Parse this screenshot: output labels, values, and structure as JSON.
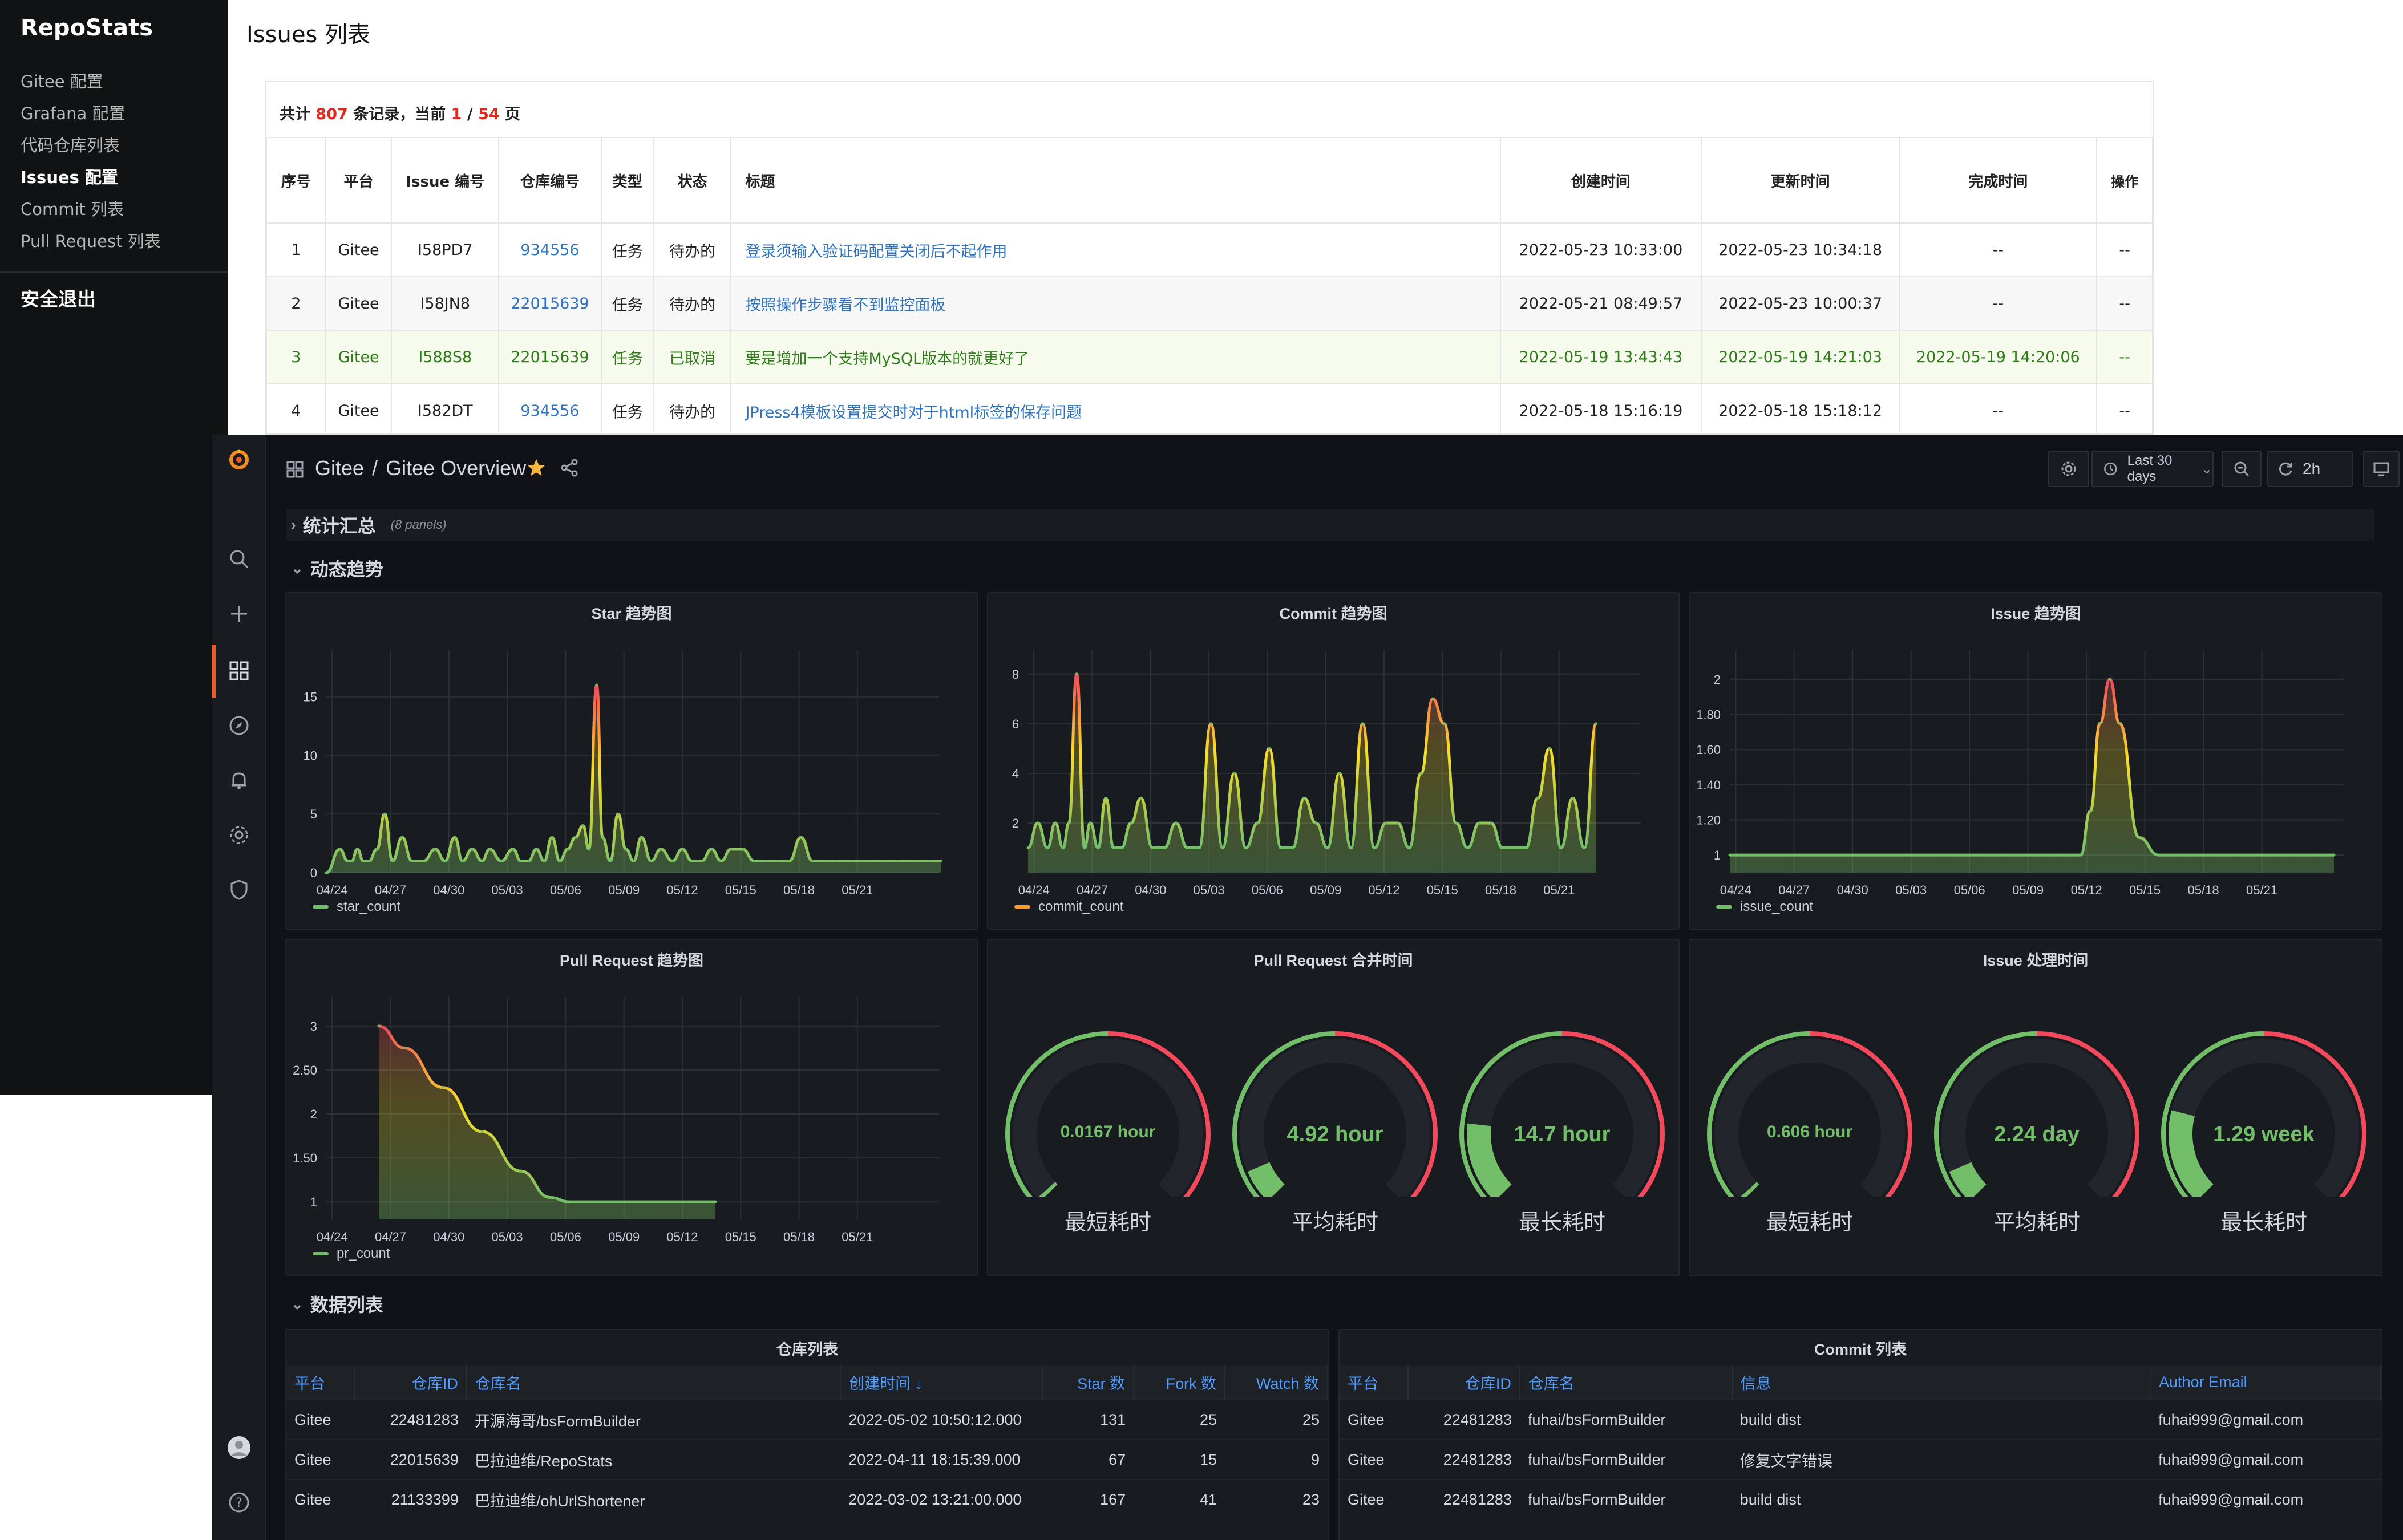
{
  "repostats": {
    "brand": "RepoStats",
    "nav": [
      "Gitee 配置",
      "Grafana 配置",
      "代码仓库列表",
      "Issues 配置",
      "Commit 列表",
      "Pull Request 列表"
    ],
    "active_index": 3,
    "logout": "安全退出",
    "page_title": "Issues 列表",
    "summary": {
      "prefix": "共计 ",
      "total": "807",
      "mid": " 条记录，当前 ",
      "page": "1",
      "sep": " / ",
      "pages": "54",
      "suffix": " 页"
    },
    "columns": [
      "序号",
      "平台",
      "Issue 编号",
      "仓库编号",
      "类型",
      "状态",
      "标题",
      "创建时间",
      "更新时间",
      "完成时间",
      "操作"
    ],
    "rows": [
      {
        "no": "1",
        "platform": "Gitee",
        "issue": "I58PD7",
        "repo": "934556",
        "type": "任务",
        "status": "待办的",
        "title": "登录须输入验证码配置关闭后不起作用",
        "created": "2022-05-23 10:33:00",
        "updated": "2022-05-23 10:34:18",
        "finished": "--",
        "ops": "--"
      },
      {
        "no": "2",
        "platform": "Gitee",
        "issue": "I58JN8",
        "repo": "22015639",
        "type": "任务",
        "status": "待办的",
        "title": "按照操作步骤看不到监控面板",
        "created": "2022-05-21 08:49:57",
        "updated": "2022-05-23 10:00:37",
        "finished": "--",
        "ops": "--"
      },
      {
        "no": "3",
        "platform": "Gitee",
        "issue": "I588S8",
        "repo": "22015639",
        "type": "任务",
        "status": "已取消",
        "title": "要是增加一个支持MySQL版本的就更好了",
        "created": "2022-05-19 13:43:43",
        "updated": "2022-05-19 14:21:03",
        "finished": "2022-05-19 14:20:06",
        "ops": "--"
      },
      {
        "no": "4",
        "platform": "Gitee",
        "issue": "I582DT",
        "repo": "934556",
        "type": "任务",
        "status": "待办的",
        "title": "JPress4模板设置提交时对于html标签的保存问题",
        "created": "2022-05-18 15:16:19",
        "updated": "2022-05-18 15:18:12",
        "finished": "--",
        "ops": "--"
      }
    ]
  },
  "grafana": {
    "breadcrumb": {
      "folder": "Gitee",
      "sep": "/",
      "dashboard": "Gitee Overview"
    },
    "time_range": "Last 30 days",
    "refresh_interval": "2h",
    "rows": {
      "summary": {
        "title": "统计汇总",
        "note": "(8 panels)"
      },
      "trends": {
        "title": "动态趋势"
      },
      "tables": {
        "title": "数据列表"
      }
    },
    "colors": {
      "green": "#73bf69",
      "yellow": "#fade2a",
      "red": "#f2495c",
      "orange": "#ff9830",
      "accent": "#f05a28"
    },
    "gauges": [
      {
        "panel": "Pull Request 合并时间",
        "items": [
          {
            "value": "0.0167 hour",
            "caption": "最短耗时",
            "fraction": 0.01
          },
          {
            "value": "4.92 hour",
            "caption": "平均耗时",
            "fraction": 0.08
          },
          {
            "value": "14.7 hour",
            "caption": "最长耗时",
            "fraction": 0.19
          }
        ]
      },
      {
        "panel": "Issue 处理时间",
        "items": [
          {
            "value": "0.606 hour",
            "caption": "最短耗时",
            "fraction": 0.01
          },
          {
            "value": "2.24 day",
            "caption": "平均耗时",
            "fraction": 0.08
          },
          {
            "value": "1.29 week",
            "caption": "最长耗时",
            "fraction": 0.22
          }
        ]
      }
    ],
    "repo_table": {
      "title": "仓库列表",
      "columns": [
        "平台",
        "仓库ID",
        "仓库名",
        "创建时间 ↓",
        "Star 数",
        "Fork 数",
        "Watch 数"
      ],
      "rows": [
        [
          "Gitee",
          "22481283",
          "开源海哥/bsFormBuilder",
          "2022-05-02 10:50:12.000",
          "131",
          "25",
          "25"
        ],
        [
          "Gitee",
          "22015639",
          "巴拉迪维/RepoStats",
          "2022-04-11 18:15:39.000",
          "67",
          "15",
          "9"
        ],
        [
          "Gitee",
          "21133399",
          "巴拉迪维/ohUrlShortener",
          "2022-03-02 13:21:00.000",
          "167",
          "41",
          "23"
        ]
      ]
    },
    "commit_table": {
      "title": "Commit 列表",
      "columns": [
        "平台",
        "仓库ID",
        "仓库名",
        "信息",
        "Author Email"
      ],
      "rows": [
        [
          "Gitee",
          "22481283",
          "fuhai/bsFormBuilder",
          "build dist",
          "fuhai999@gmail.com"
        ],
        [
          "Gitee",
          "22481283",
          "fuhai/bsFormBuilder",
          "修复文字错误",
          "fuhai999@gmail.com"
        ],
        [
          "Gitee",
          "22481283",
          "fuhai/bsFormBuilder",
          "build dist",
          "fuhai999@gmail.com"
        ]
      ]
    }
  },
  "chart_data": [
    {
      "type": "line",
      "title": "Star 趋势图",
      "x_ticks": [
        "04/24",
        "04/27",
        "04/30",
        "05/03",
        "05/06",
        "05/09",
        "05/12",
        "05/15",
        "05/18",
        "05/21"
      ],
      "y_ticks": [
        "0",
        "5",
        "10",
        "15"
      ],
      "ylim": [
        0,
        18
      ],
      "series": [
        {
          "name": "star_count",
          "x": [
            0,
            0.7,
            1.1,
            1.3,
            1.6,
            1.9,
            2.2,
            2.6,
            3.0,
            3.4,
            3.9,
            4.4,
            5.0,
            5.6,
            6.1,
            6.6,
            7.0,
            7.5,
            8.0,
            8.4,
            9.0,
            9.6,
            10.0,
            10.4,
            10.8,
            11.2,
            11.6,
            12.0,
            12.4,
            12.8,
            13.2,
            13.5,
            13.9,
            14.2,
            14.6,
            15.0,
            15.4,
            15.8,
            16.2,
            16.7,
            17.2,
            17.8,
            18.3,
            18.8,
            19.3,
            19.8,
            20.3,
            20.8,
            21.4,
            22.0,
            22.6,
            23.2,
            23.8,
            24.4,
            25.0,
            25.6,
            26.2,
            27.0,
            27.8,
            28.6,
            29.4,
            30.2,
            31.0,
            31.6
          ],
          "values": [
            0,
            2,
            1,
            1,
            2,
            1,
            1,
            2,
            5,
            1,
            3,
            1,
            1,
            2,
            1,
            3,
            1,
            2,
            1,
            2,
            1,
            2,
            1,
            1,
            2,
            1,
            3,
            1,
            2,
            3,
            4,
            2,
            16,
            3,
            1,
            5,
            2,
            1,
            3,
            1,
            2,
            1,
            2,
            1,
            1,
            2,
            1,
            2,
            2,
            1,
            1,
            1,
            1,
            3,
            1,
            1,
            1,
            1,
            1,
            1,
            1,
            1,
            1,
            1
          ]
        }
      ],
      "legend": "bottom-left",
      "color_scale": "green-yellow-red"
    },
    {
      "type": "line",
      "title": "Commit 趋势图",
      "x_ticks": [
        "04/24",
        "04/27",
        "04/30",
        "05/03",
        "05/06",
        "05/09",
        "05/12",
        "05/15",
        "05/18",
        "05/21"
      ],
      "y_ticks": [
        "2",
        "4",
        "6",
        "8"
      ],
      "ylim": [
        0,
        8.5
      ],
      "series": [
        {
          "name": "commit_count",
          "x": [
            0,
            0.5,
            1.0,
            1.4,
            1.8,
            2.1,
            2.5,
            2.9,
            3.2,
            3.6,
            4.0,
            4.4,
            4.8,
            5.3,
            5.8,
            6.4,
            7.0,
            7.6,
            8.2,
            8.8,
            9.4,
            10.0,
            10.6,
            11.2,
            11.8,
            12.4,
            13.0,
            13.6,
            14.2,
            14.8,
            15.4,
            16.0,
            16.6,
            17.2,
            17.8,
            18.4,
            19.0,
            19.6,
            20.2,
            20.8,
            21.4,
            22.0,
            22.6,
            23.2,
            23.8,
            24.4,
            25.0,
            25.6,
            26.2,
            26.8,
            27.4,
            28.0,
            28.6,
            29.2
          ],
          "values": [
            1,
            2,
            1,
            2,
            1,
            2,
            8,
            1,
            2,
            1,
            3,
            1,
            1,
            2,
            3,
            1,
            1,
            2,
            1,
            1,
            6,
            1,
            4,
            1,
            2,
            5,
            1,
            1,
            3,
            2,
            1,
            4,
            1,
            6,
            1,
            2,
            2,
            1,
            4,
            7,
            6,
            2,
            1,
            2,
            2,
            1,
            1,
            1,
            3,
            5,
            1,
            3,
            1,
            6
          ]
        }
      ],
      "legend": "bottom-left",
      "color_scale": "green-yellow-red"
    },
    {
      "type": "line",
      "title": "Issue 趋势图",
      "x_ticks": [
        "04/24",
        "04/27",
        "04/30",
        "05/03",
        "05/06",
        "05/09",
        "05/12",
        "05/15",
        "05/18",
        "05/21"
      ],
      "y_ticks": [
        "1",
        "1.20",
        "1.40",
        "1.60",
        "1.80",
        "2"
      ],
      "ylim": [
        0.9,
        2.1
      ],
      "series": [
        {
          "name": "issue_count",
          "x": [
            0,
            3,
            6,
            9,
            11,
            13,
            14,
            15,
            16,
            17,
            18,
            18.5,
            19,
            19.5,
            20,
            21,
            22,
            23,
            24,
            25,
            26,
            27,
            28,
            29,
            30,
            31
          ],
          "values": [
            1,
            1,
            1,
            1,
            1,
            1,
            1,
            1,
            1,
            1,
            1,
            1.25,
            1.75,
            2,
            1.75,
            1.1,
            1,
            1,
            1,
            1,
            1,
            1,
            1,
            1,
            1,
            1
          ]
        }
      ],
      "legend": "bottom-left",
      "color_scale": "green-yellow-red"
    },
    {
      "type": "area",
      "title": "Pull Request 趋势图",
      "x_ticks": [
        "04/24",
        "04/27",
        "04/30",
        "05/03",
        "05/06",
        "05/09",
        "05/12",
        "05/15",
        "05/18",
        "05/21"
      ],
      "y_ticks": [
        "1",
        "1.50",
        "2",
        "2.50",
        "3"
      ],
      "ylim": [
        0.8,
        3.2
      ],
      "series": [
        {
          "name": "pr_count",
          "x": [
            2.7,
            4.0,
            6.0,
            8.0,
            10.0,
            11.5,
            12.5,
            15.0,
            18.0,
            20.0
          ],
          "values": [
            3,
            2.75,
            2.3,
            1.8,
            1.35,
            1.05,
            1,
            1,
            1,
            1
          ]
        }
      ],
      "legend": "bottom-left",
      "color_scale": "green-yellow-red"
    }
  ]
}
